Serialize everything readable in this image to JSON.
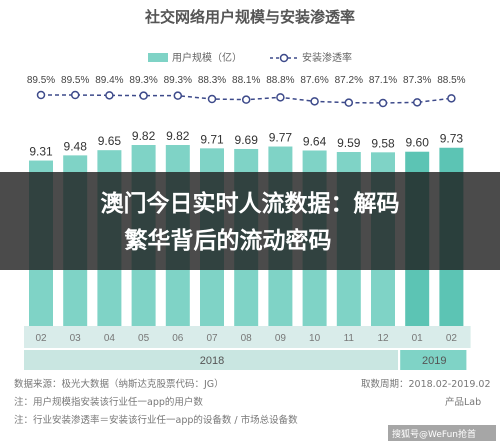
{
  "chart_data": {
    "type": "bar",
    "title": "社交网络用户规模与安装渗透率",
    "legend": [
      "用户规模（亿）",
      "安装渗透率"
    ],
    "categories": [
      "02",
      "03",
      "04",
      "05",
      "06",
      "07",
      "08",
      "09",
      "10",
      "11",
      "12",
      "01",
      "02"
    ],
    "year_groups": [
      {
        "label": "2018",
        "from": 0,
        "to": 10
      },
      {
        "label": "2019",
        "from": 11,
        "to": 12
      }
    ],
    "series": [
      {
        "name": "用户规模（亿）",
        "type": "bar",
        "values": [
          9.31,
          9.48,
          9.65,
          9.82,
          9.82,
          9.71,
          9.69,
          9.77,
          9.64,
          9.59,
          9.58,
          9.6,
          9.73
        ],
        "labels": [
          "9.31",
          "9.48",
          "9.65",
          "9.82",
          "9.82",
          "9.71",
          "9.69",
          "9.77",
          "9.64",
          "9.59",
          "9.58",
          "9.60",
          "9.73"
        ]
      },
      {
        "name": "安装渗透率",
        "type": "line",
        "values": [
          89.5,
          89.5,
          89.4,
          89.3,
          89.3,
          88.3,
          88.1,
          88.8,
          87.6,
          87.2,
          87.1,
          87.3,
          88.5
        ],
        "labels": [
          "89.5%",
          "89.5%",
          "89.4%",
          "89.3%",
          "89.3%",
          "88.3%",
          "88.1%",
          "88.8%",
          "87.6%",
          "87.2%",
          "87.1%",
          "87.3%",
          "88.5%"
        ]
      }
    ],
    "colors": {
      "bar": "#7fd3c6",
      "bar_highlight": "#5cc4b4",
      "line": "#3d4a8a",
      "axis_band": "#d9ecea",
      "year_band": "#c9e6e1",
      "year_highlight": "#7fd3c6"
    }
  },
  "footnotes": {
    "source": "数据来源：极光大数据（纳斯达克股票代码：JG）",
    "period": "取数周期：2018.02-2019.02",
    "note1": "注：用户规模指安装该行业任一app的用户数",
    "note2": "注：行业安装渗透率＝安装该行业任一app的设备数 / 市场总设备数",
    "brand": "产品Lab"
  },
  "overlay": {
    "line1": "澳门今日实时人流数据：解码",
    "line2": "繁华背后的流动密码",
    "watermark": "搜狐号@WeFun抢首"
  }
}
